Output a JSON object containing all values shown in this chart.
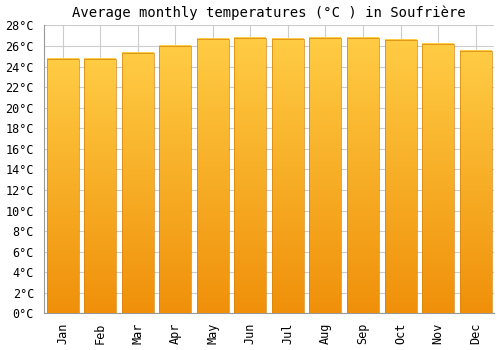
{
  "title": "Average monthly temperatures (°C ) in Soufrière",
  "months": [
    "Jan",
    "Feb",
    "Mar",
    "Apr",
    "May",
    "Jun",
    "Jul",
    "Aug",
    "Sep",
    "Oct",
    "Nov",
    "Dec"
  ],
  "values": [
    24.7,
    24.7,
    25.3,
    26.0,
    26.7,
    26.8,
    26.7,
    26.8,
    26.8,
    26.6,
    26.2,
    25.5
  ],
  "bar_color_top": "#FFCC44",
  "bar_color_bottom": "#F0900A",
  "bar_edge_color": "#D4820A",
  "ylim": [
    0,
    28
  ],
  "yticks": [
    0,
    2,
    4,
    6,
    8,
    10,
    12,
    14,
    16,
    18,
    20,
    22,
    24,
    26,
    28
  ],
  "ytick_labels": [
    "0°C",
    "2°C",
    "4°C",
    "6°C",
    "8°C",
    "10°C",
    "12°C",
    "14°C",
    "16°C",
    "18°C",
    "20°C",
    "22°C",
    "24°C",
    "26°C",
    "28°C"
  ],
  "background_color": "#ffffff",
  "grid_color": "#cccccc",
  "title_fontsize": 10,
  "tick_fontsize": 8.5,
  "bar_width": 0.85
}
